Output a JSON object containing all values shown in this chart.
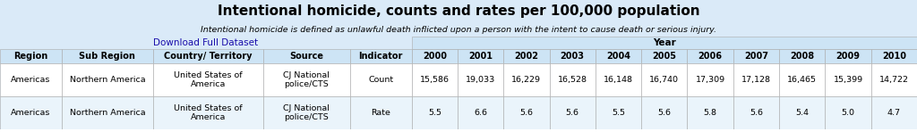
{
  "title": "Intentional homicide, counts and rates per 100,000 population",
  "subtitle": "Intentional homicide is defined as unlawful death inflicted upon a person with the intent to cause death or serious injury.",
  "link_text": "Download Full Dataset",
  "year_header": "Year",
  "col_headers": [
    "Region",
    "Sub Region",
    "Country/ Territory",
    "Source",
    "Indicator",
    "2000",
    "2001",
    "2002",
    "2003",
    "2004",
    "2005",
    "2006",
    "2007",
    "2008",
    "2009",
    "2010"
  ],
  "row1": [
    "Americas",
    "Northern America",
    "United States of\nAmerica",
    "CJ National\npolice/CTS",
    "Count",
    "15,586",
    "19,033",
    "16,229",
    "16,528",
    "16,148",
    "16,740",
    "17,309",
    "17,128",
    "16,465",
    "15,399",
    "14,722"
  ],
  "row2": [
    "Americas",
    "Northern America",
    "United States of\nAmerica",
    "CJ National\npolice/CTS",
    "Rate",
    "5.5",
    "6.6",
    "5.6",
    "5.6",
    "5.5",
    "5.6",
    "5.8",
    "5.6",
    "5.4",
    "5.0",
    "4.7"
  ],
  "bg_color_header": "#cde4f5",
  "bg_color_white": "#ffffff",
  "bg_color_light": "#eaf4fb",
  "bg_top": "#daeaf8",
  "title_color": "#000000",
  "subtitle_color": "#000000",
  "link_color": "#1a0dab",
  "header_text_color": "#000000",
  "cell_text_color": "#000000",
  "fig_bg": "#daeaf8"
}
